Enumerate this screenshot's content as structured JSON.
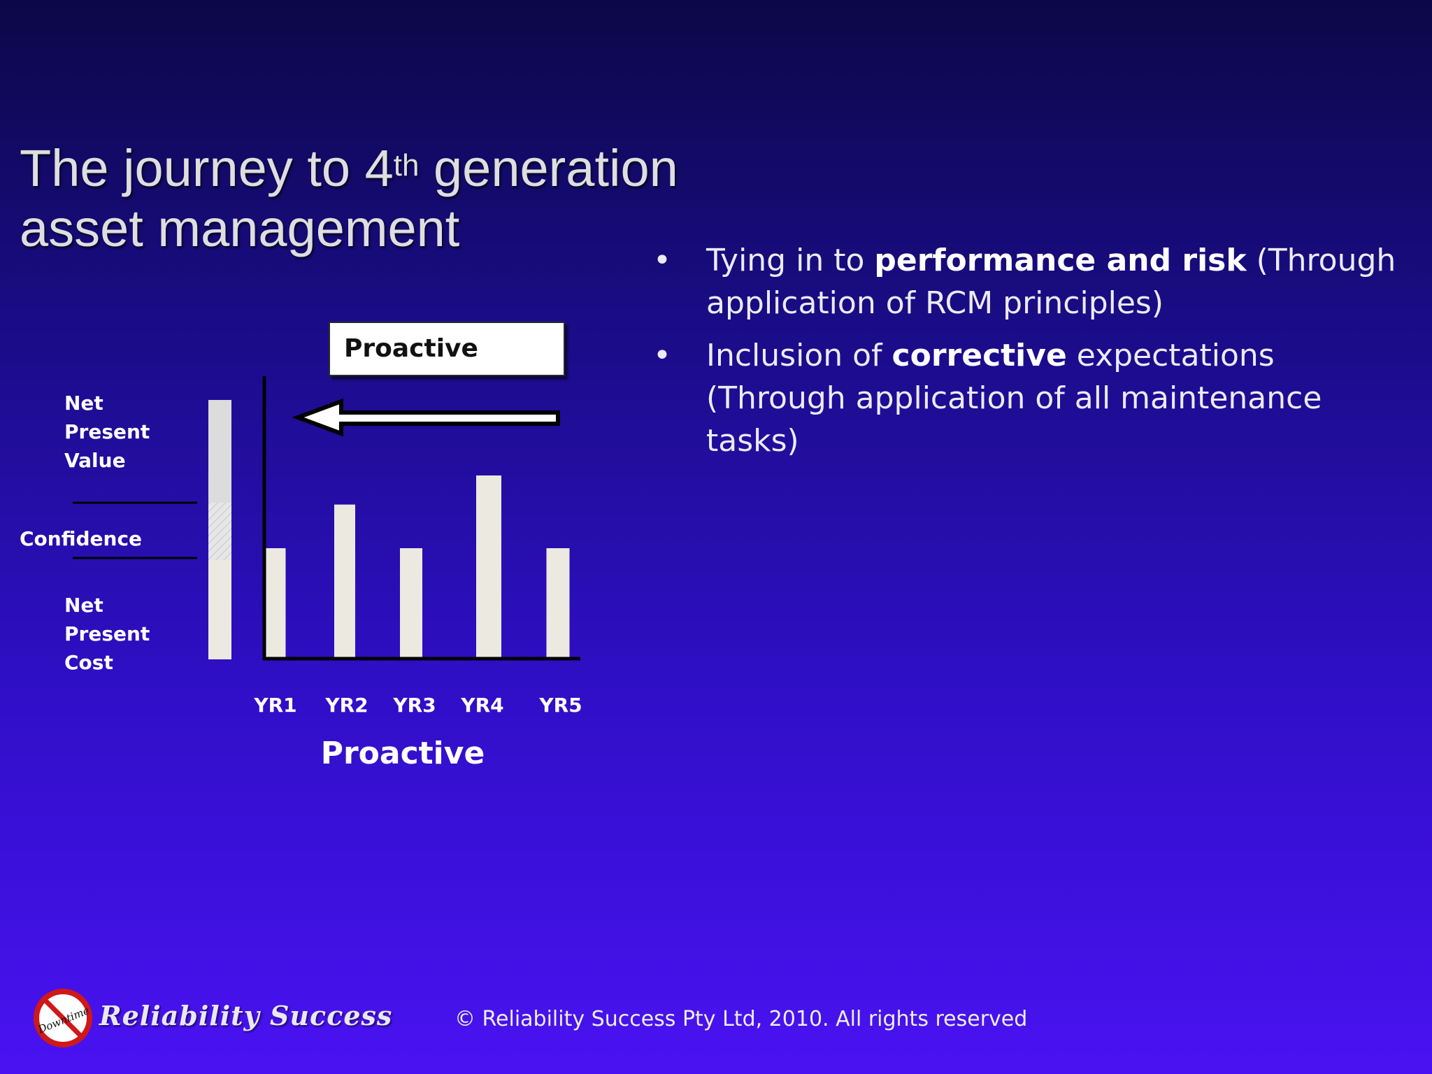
{
  "slide": {
    "title_line1_pre": "The journey to 4",
    "title_sup": "th",
    "title_line1_post": " generation",
    "title_line2": "asset management"
  },
  "bullets": [
    {
      "dot": "•",
      "pre": "Tying in to ",
      "bold": "performance and risk",
      "post": " (Through application of RCM principles)"
    },
    {
      "dot": "•",
      "pre": "Inclusion of ",
      "bold": "corrective",
      "post": " expectations (Through application of all maintenance tasks)"
    }
  ],
  "side_labels": {
    "npv": [
      "Net",
      "Present",
      "Value"
    ],
    "confidence": "Confidence",
    "npc": [
      "Net",
      "Present",
      "Cost"
    ]
  },
  "arrow_box_label": "Proactive",
  "chart_data": {
    "type": "bar",
    "categories": [
      "YR1",
      "YR2",
      "YR3",
      "YR4",
      "YR5"
    ],
    "values": [
      3,
      4.2,
      3,
      5,
      3
    ],
    "ylim": [
      0,
      10
    ],
    "xlabel": "Proactive",
    "ylabel": ""
  },
  "footer": {
    "copyright": "© Reliability Success Pty  Ltd, 2010. All rights reserved",
    "logo_text": "Reliability Success",
    "logo_badge": "Downtime"
  },
  "colors": {
    "bar": "#ece9e0",
    "axis": "#000000",
    "bg_top": "#0b0848",
    "bg_bottom": "#4a12f2"
  }
}
